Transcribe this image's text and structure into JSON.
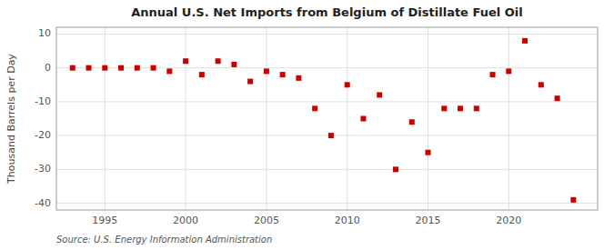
{
  "chart_data": {
    "type": "scatter",
    "title": "Annual U.S. Net Imports from Belgium of Distillate Fuel Oil",
    "ylabel": "Thousand Barrels per Day",
    "annotations": [
      "Source: U.S. Energy Information Administration"
    ],
    "color": "#cc0000",
    "marker": "square",
    "grid": true,
    "xlim": [
      1992.0,
      2025.5
    ],
    "ylim": [
      -42,
      12
    ],
    "yticks": [
      -40,
      -30,
      -20,
      -10,
      0,
      10
    ],
    "xticks": [
      1995,
      2000,
      2005,
      2010,
      2015,
      2020
    ],
    "x": [
      1993,
      1994,
      1995,
      1996,
      1997,
      1998,
      1999,
      2000,
      2001,
      2002,
      2003,
      2004,
      2005,
      2006,
      2007,
      2008,
      2009,
      2010,
      2011,
      2012,
      2013,
      2014,
      2015,
      2016,
      2017,
      2018,
      2019,
      2020,
      2021,
      2022,
      2023,
      2024
    ],
    "values": [
      0,
      0,
      0,
      0,
      0,
      0,
      -1,
      2,
      -2,
      2,
      1,
      -4,
      -1,
      -2,
      -3,
      -12,
      -20,
      -5,
      -15,
      -8,
      -30,
      -16,
      -25,
      -12,
      -12,
      -12,
      -2,
      -1,
      8,
      -5,
      -9,
      -39
    ]
  }
}
